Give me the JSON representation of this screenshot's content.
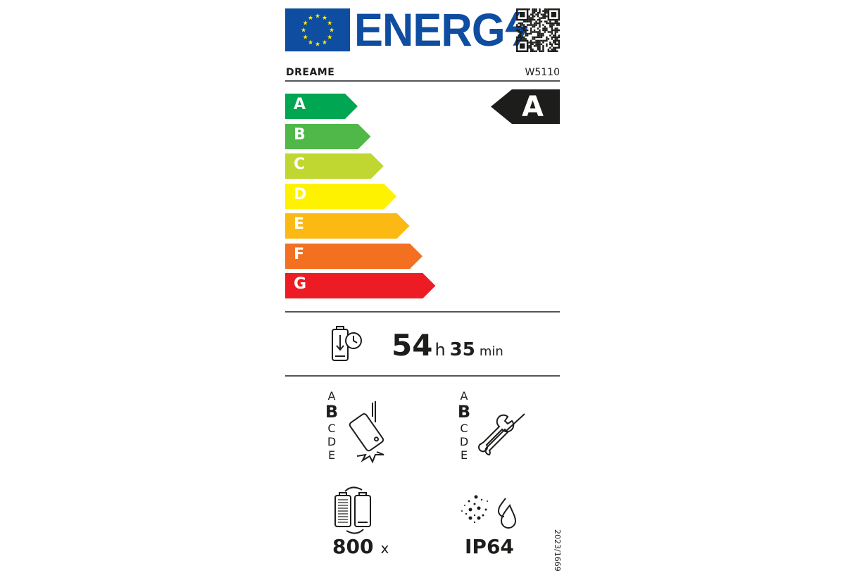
{
  "header": {
    "logo_text": "ENERG",
    "brand": "DREAME",
    "model": "W5110"
  },
  "colors": {
    "eu_blue": "#0f4da1",
    "star": "#ffed00",
    "A": "#00a651",
    "B": "#50b848",
    "C": "#bfd730",
    "D": "#fff200",
    "E": "#fdb913",
    "F": "#f37021",
    "G": "#ed1c24"
  },
  "energy_classes": [
    "A",
    "B",
    "C",
    "D",
    "E",
    "F",
    "G"
  ],
  "rating": "A",
  "battery_endurance": {
    "hours": "54",
    "h_unit": "h",
    "minutes": "35",
    "min_unit": "min"
  },
  "drop_resistance": {
    "classes": [
      "A",
      "B",
      "C",
      "D",
      "E"
    ],
    "selected": "B"
  },
  "repairability": {
    "classes": [
      "A",
      "B",
      "C",
      "D",
      "E"
    ],
    "selected": "B"
  },
  "battery_cycles": {
    "value": "800",
    "unit": "x"
  },
  "ingress_protection": "IP64",
  "regulation": "2023/1669"
}
